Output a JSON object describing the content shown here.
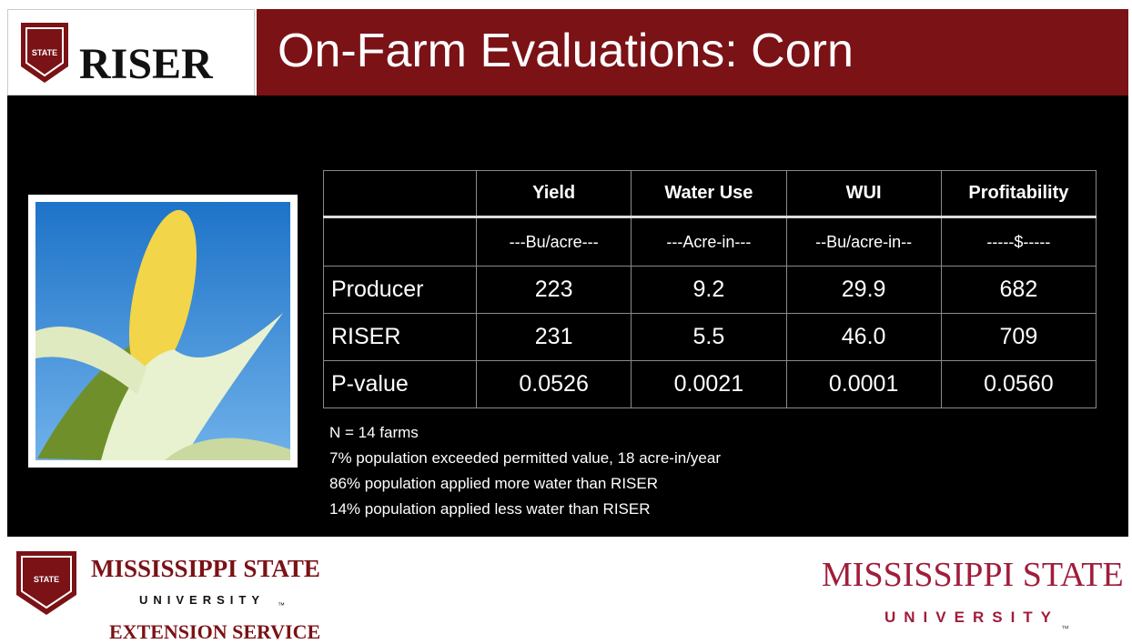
{
  "header": {
    "logo_text": "RISER",
    "shield_text": "STATE",
    "title": "On-Farm Evaluations: Corn"
  },
  "table": {
    "columns": [
      "Yield",
      "Water Use",
      "WUI",
      "Profitability"
    ],
    "units": [
      "---Bu/acre---",
      "---Acre-in---",
      "--Bu/acre-in--",
      "-----$-----"
    ],
    "rows": [
      {
        "label": "Producer",
        "values": [
          "223",
          "9.2",
          "29.9",
          "682"
        ]
      },
      {
        "label": "RISER",
        "values": [
          "231",
          "5.5",
          "46.0",
          "709"
        ]
      },
      {
        "label": "P-value",
        "values": [
          "0.0526",
          "0.0021",
          "0.0001",
          "0.0560"
        ]
      }
    ]
  },
  "notes": [
    "N = 14 farms",
    "7% population exceeded permitted value, 18 acre-in/year",
    "86% population applied more water than RISER",
    "14% population applied less water than RISER"
  ],
  "footer": {
    "left": {
      "shield_text": "STATE",
      "name": "MISSISSIPPI STATE",
      "sub": "UNIVERSITY",
      "trademark": "™",
      "unit": "EXTENSION SERVICE"
    },
    "right": {
      "name": "MISSISSIPPI STATE",
      "sub": "UNIVERSITY",
      "trademark": "™"
    }
  }
}
